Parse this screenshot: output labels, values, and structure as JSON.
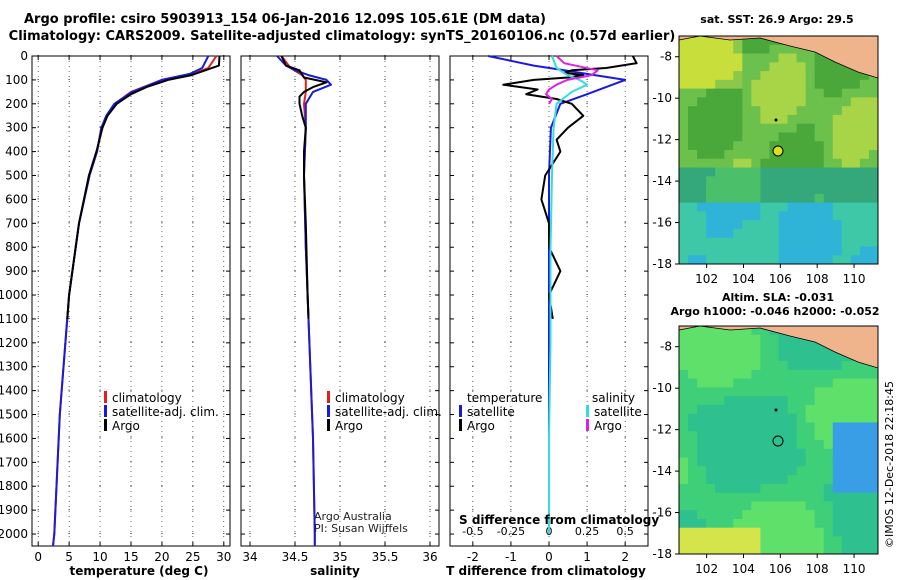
{
  "header": {
    "line1": "Argo profile: csiro 5903913_154 06-Jan-2016 12.09S 105.61E (DM data)",
    "line2": "Climatology: CARS2009. Satellite-adjusted climatology: synTS_20160106.nc (0.57d earlier)"
  },
  "colors": {
    "climatology": "#e02020",
    "satellite": "#1a1adf",
    "argo": "#000000",
    "sat_salinity": "#33dddd",
    "argo_salinity": "#e020e0",
    "land": "#f0b48c"
  },
  "depth_axis": {
    "ticks": [
      "0",
      "100",
      "200",
      "300",
      "400",
      "500",
      "600",
      "700",
      "800",
      "900",
      "1000",
      "1100",
      "1200",
      "1300",
      "1400",
      "1500",
      "1600",
      "1700",
      "1800",
      "1900",
      "2000"
    ],
    "ylim": [
      0,
      2050
    ]
  },
  "panel_temp": {
    "xlabel": "temperature (deg C)",
    "xticks": [
      "0",
      "5",
      "10",
      "15",
      "20",
      "25",
      "30"
    ],
    "legend": [
      "climatology",
      "satellite-adj. clim.",
      "Argo"
    ]
  },
  "panel_sal": {
    "xlabel": "salinity",
    "xticks": [
      "34",
      "34.5",
      "35",
      "35.5",
      "36"
    ],
    "legend": [
      "climatology",
      "satellite-adj. clim.",
      "Argo"
    ],
    "credit1": "Argo Australia",
    "credit2": "PI: Susan Wijffels"
  },
  "panel_diff": {
    "xlabel": "T difference from climatology",
    "xticks": [
      "-2",
      "-1",
      "0",
      "1",
      "2"
    ],
    "s_label": "S difference from climatology",
    "s_ticks": [
      "-0.5",
      "-0.25",
      "0",
      "0.25",
      "0.5"
    ],
    "legend_t_head": "temperature",
    "legend_s_head": "salinity",
    "legend_t": [
      "satellite",
      "Argo"
    ],
    "legend_s": [
      "satellite",
      "Argo"
    ]
  },
  "map_sst": {
    "title": "sat. SST: 26.9 Argo: 29.5",
    "yticks": [
      "-8",
      "-10",
      "-12",
      "-14",
      "-16",
      "-18"
    ],
    "xticks": [
      "102",
      "104",
      "106",
      "108",
      "110"
    ]
  },
  "map_sla": {
    "title1": "Altim. SLA: -0.031",
    "title2": "Argo h1000: -0.046 h2000: -0.052",
    "yticks": [
      "-8",
      "-10",
      "-12",
      "-14",
      "-16",
      "-18"
    ],
    "xticks": [
      "102",
      "104",
      "106",
      "108",
      "110"
    ]
  },
  "footer": "©IMOS 12-Dec-2018 22:18:45",
  "chart_data": [
    {
      "type": "line",
      "xlabel": "temperature (deg C)",
      "ylabel": "",
      "xlim": [
        -1,
        31
      ],
      "ylim": [
        2050,
        0
      ],
      "series": [
        {
          "name": "climatology",
          "depth": [
            0,
            50,
            75,
            100,
            150,
            200,
            250,
            300,
            400,
            500,
            700,
            1000,
            1500,
            2000,
            2050
          ],
          "values": [
            28.8,
            27.5,
            25,
            20,
            15,
            12.4,
            11,
            10.3,
            9.5,
            8.3,
            6.6,
            5,
            3.5,
            2.6,
            2.4
          ]
        },
        {
          "name": "satellite-adj. clim.",
          "depth": [
            0,
            50,
            75,
            100,
            150,
            200,
            250,
            300,
            400,
            500,
            700,
            1000,
            1500,
            2000,
            2050
          ],
          "values": [
            27.5,
            26.5,
            24.5,
            20,
            15.2,
            12.3,
            11,
            10.2,
            9.5,
            8.3,
            6.6,
            5,
            3.5,
            2.6,
            2.4
          ]
        },
        {
          "name": "Argo",
          "depth": [
            0,
            40,
            60,
            80,
            100,
            130,
            160,
            200,
            250,
            300,
            400,
            500,
            700,
            1000,
            1100
          ],
          "values": [
            29.3,
            29.2,
            27,
            24.8,
            21,
            17.5,
            15,
            12.7,
            11.2,
            10.4,
            9.4,
            8.2,
            6.6,
            5,
            4.7
          ]
        }
      ]
    },
    {
      "type": "line",
      "xlabel": "salinity",
      "ylabel": "",
      "xlim": [
        33.9,
        36.1
      ],
      "ylim": [
        2050,
        0
      ],
      "series": [
        {
          "name": "climatology",
          "depth": [
            0,
            50,
            80,
            100,
            150,
            200,
            300,
            500,
            800,
            1200,
            1600,
            2000,
            2050
          ],
          "values": [
            34.35,
            34.45,
            34.58,
            34.62,
            34.62,
            34.6,
            34.62,
            34.6,
            34.62,
            34.66,
            34.7,
            34.72,
            34.72
          ]
        },
        {
          "name": "satellite-adj. clim.",
          "depth": [
            0,
            40,
            60,
            80,
            100,
            120,
            150,
            200,
            300,
            500,
            800,
            1200,
            1600,
            2000,
            2050
          ],
          "values": [
            34.3,
            34.4,
            34.5,
            34.65,
            34.85,
            34.9,
            34.7,
            34.62,
            34.62,
            34.6,
            34.62,
            34.66,
            34.7,
            34.72,
            34.72
          ]
        },
        {
          "name": "Argo",
          "depth": [
            0,
            40,
            60,
            90,
            110,
            130,
            150,
            170,
            200,
            250,
            300,
            400,
            500,
            700,
            1000,
            1100
          ],
          "values": [
            34.35,
            34.4,
            34.55,
            34.6,
            34.85,
            34.7,
            34.6,
            34.55,
            34.55,
            34.58,
            34.62,
            34.6,
            34.6,
            34.62,
            34.64,
            34.65
          ]
        }
      ]
    },
    {
      "type": "line",
      "xlabel": "T difference from climatology",
      "ylabel": "",
      "xlim": [
        -2.6,
        2.6
      ],
      "ylim": [
        2050,
        0
      ],
      "series": [
        {
          "name": "temperature satellite",
          "depth": [
            0,
            20,
            40,
            60,
            80,
            100,
            130,
            160,
            200,
            300,
            500,
            800,
            1200,
            1600,
            2000
          ],
          "values": [
            -1.6,
            -1.0,
            -0.4,
            0.4,
            1.2,
            2.0,
            1.5,
            1.0,
            0.3,
            0.05,
            0,
            0,
            0,
            0,
            0
          ]
        },
        {
          "name": "temperature Argo",
          "depth": [
            0,
            30,
            50,
            60,
            70,
            80,
            90,
            100,
            120,
            140,
            160,
            180,
            200,
            250,
            300,
            350,
            400,
            500,
            600,
            700,
            800,
            900,
            1000,
            1100
          ],
          "values": [
            2.2,
            2.3,
            1.5,
            0.6,
            0.4,
            0.9,
            0.5,
            -0.4,
            -1.2,
            -0.3,
            -0.6,
            0.2,
            0.6,
            0.9,
            0.5,
            0.2,
            0.3,
            -0.1,
            -0.2,
            0.0,
            0.0,
            0.3,
            0.0,
            0.1
          ]
        },
        {
          "name": "salinity satellite",
          "depth": [
            0,
            50,
            80,
            100,
            120,
            150,
            200,
            300,
            500,
            800,
            1200,
            1600,
            2000
          ],
          "values": [
            0.02,
            0.05,
            0.12,
            0.2,
            0.25,
            0.15,
            0.05,
            0.03,
            0.02,
            0.01,
            0.01,
            0.0,
            0.0
          ]
        },
        {
          "name": "salinity Argo",
          "depth": [
            0,
            30,
            60,
            80,
            100,
            120,
            140,
            160,
            180,
            200
          ],
          "values": [
            0.05,
            0.1,
            0.32,
            0.28,
            0.12,
            0.05,
            0.0,
            -0.02,
            0.02,
            0.0
          ]
        }
      ]
    }
  ]
}
